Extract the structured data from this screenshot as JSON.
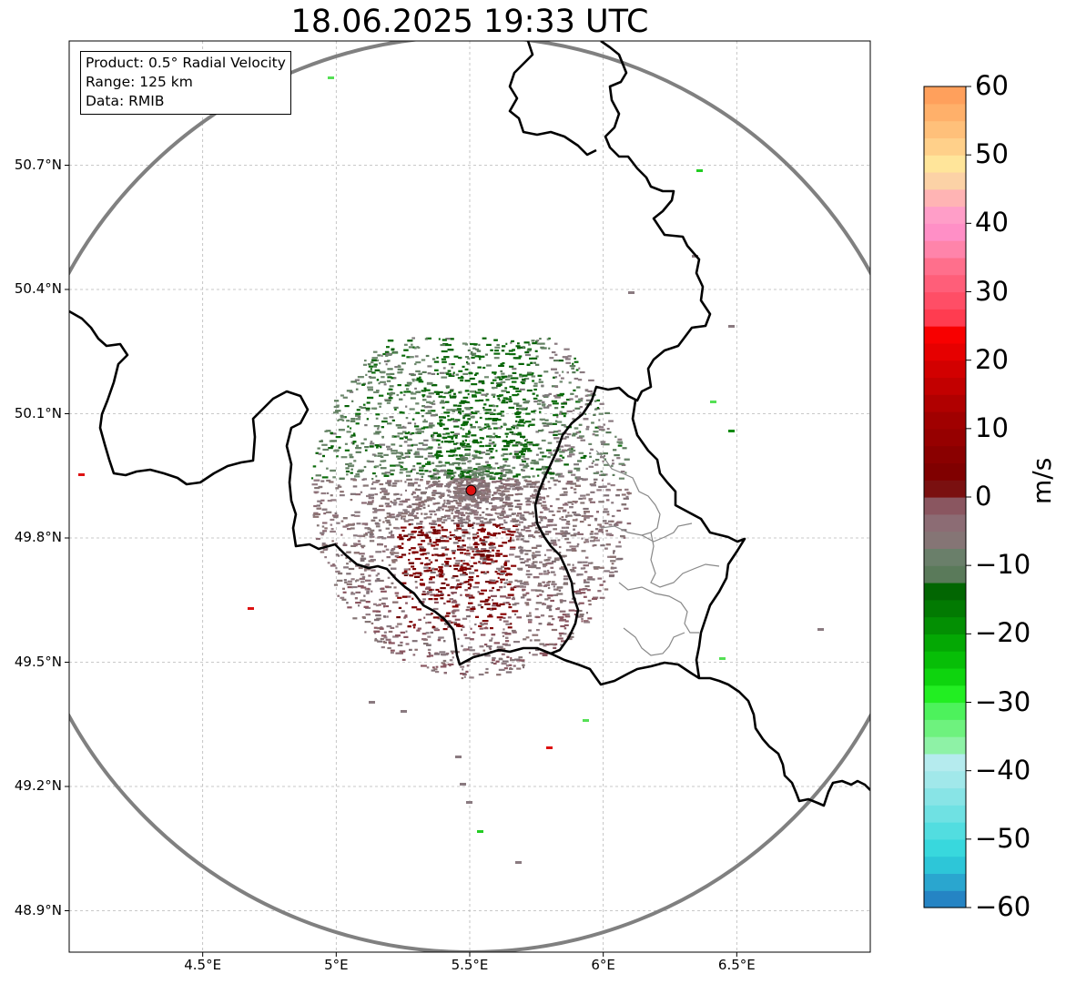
{
  "title": "18.06.2025 19:33 UTC",
  "info": {
    "product": "Product: 0.5° Radial Velocity",
    "range": "Range: 125 km",
    "data": "Data: RMIB"
  },
  "map": {
    "lon_range": [
      4.0,
      7.0
    ],
    "lat_range": [
      48.8,
      51.0
    ],
    "lat_ticks": [
      {
        "value": 50.7,
        "label": "50.7°N"
      },
      {
        "value": 50.4,
        "label": "50.4°N"
      },
      {
        "value": 50.1,
        "label": "50.1°N"
      },
      {
        "value": 49.8,
        "label": "49.8°N"
      },
      {
        "value": 49.5,
        "label": "49.5°N"
      },
      {
        "value": 49.2,
        "label": "49.2°N"
      },
      {
        "value": 48.9,
        "label": "48.9°N"
      }
    ],
    "lon_ticks": [
      {
        "value": 4.5,
        "label": "4.5°E"
      },
      {
        "value": 5.0,
        "label": "5°E"
      },
      {
        "value": 5.5,
        "label": "5.5°E"
      },
      {
        "value": 6.0,
        "label": "6°E"
      },
      {
        "value": 6.5,
        "label": "6.5°E"
      }
    ],
    "radar_site": {
      "lon": 5.505,
      "lat": 49.915,
      "color": "#dd1111"
    },
    "range_ring_color": "#808080",
    "border_color": "#000000",
    "region_border_color": "#888888"
  },
  "colorbar": {
    "min": -60,
    "max": 60,
    "unit": "m/s",
    "ticks": [
      "60",
      "50",
      "40",
      "30",
      "20",
      "10",
      "0",
      "−10",
      "−20",
      "−30",
      "−40",
      "−50",
      "−60"
    ],
    "colors": [
      "#2584c4",
      "#2aa6cf",
      "#2dc6d8",
      "#38d8dd",
      "#52dde0",
      "#6fe1e3",
      "#88e4e6",
      "#a1e8ea",
      "#b5ebee",
      "#8ef2a6",
      "#6ef27e",
      "#4df25c",
      "#22ee22",
      "#0ed40e",
      "#07be07",
      "#04a804",
      "#038f03",
      "#027a02",
      "#026602",
      "#5a7a5a",
      "#6a7f6a",
      "#857575",
      "#8c6c74",
      "#8a5660",
      "#7a1010",
      "#800000",
      "#8a0000",
      "#960000",
      "#a00000",
      "#b00000",
      "#c20000",
      "#d20000",
      "#e60000",
      "#f80000",
      "#ff3c50",
      "#ff4e66",
      "#ff5e79",
      "#ff6f8c",
      "#ff84aa",
      "#ff8fc6",
      "#ff9ec8",
      "#ffb4b4",
      "#fcd2a6",
      "#ffe59a",
      "#ffd08a",
      "#ffc07a",
      "#ffb06a",
      "#ffa05c"
    ]
  }
}
